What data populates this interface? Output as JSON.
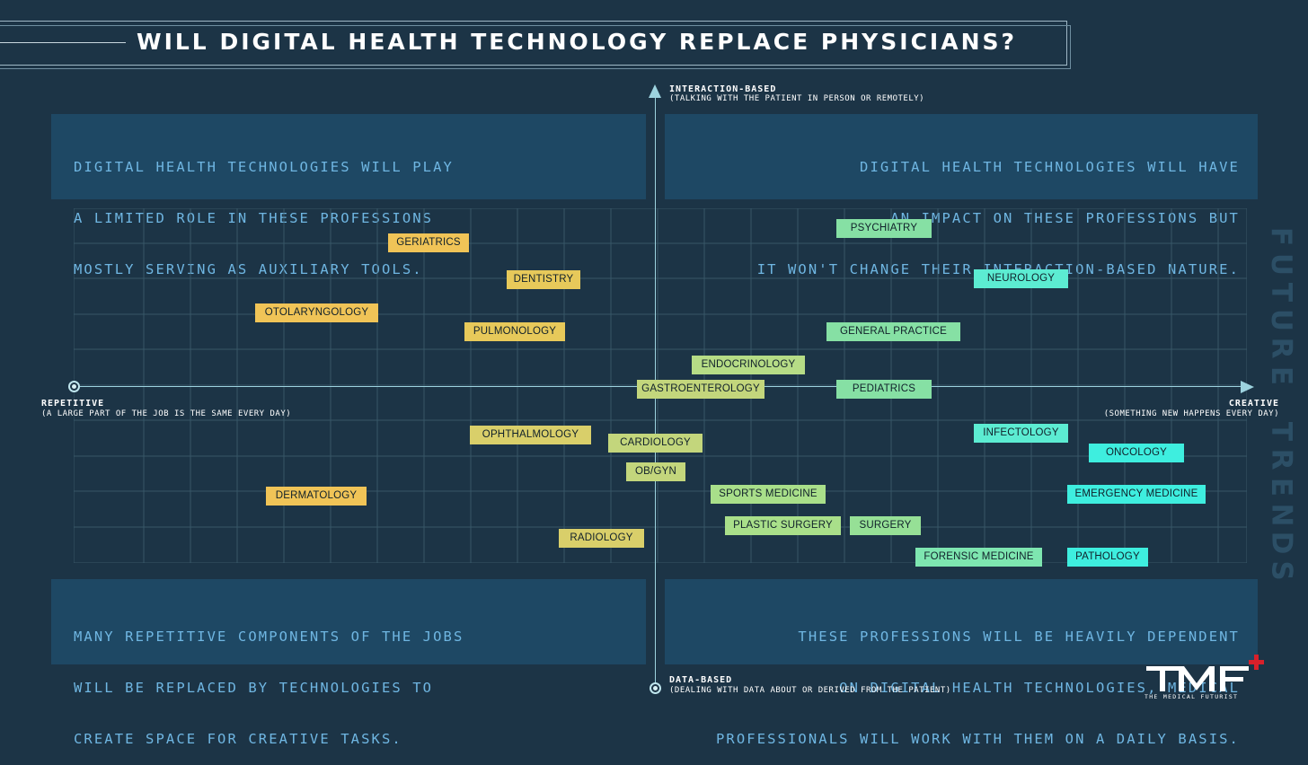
{
  "title": "WILL DIGITAL HEALTH TECHNOLOGY REPLACE PHYSICIANS?",
  "quadrants": {
    "top_left": [
      "DIGITAL HEALTH TECHNOLOGIES WILL PLAY",
      "A LIMITED ROLE IN THESE PROFESSIONS",
      "MOSTLY SERVING AS AUXILIARY TOOLS."
    ],
    "top_right": [
      "DIGITAL HEALTH TECHNOLOGIES WILL HAVE",
      "AN IMPACT ON THESE PROFESSIONS BUT",
      "IT WON'T CHANGE THEIR INTERACTION-BASED NATURE."
    ],
    "bottom_left": [
      "MANY REPETITIVE COMPONENTS OF THE JOBS",
      "WILL BE REPLACED BY TECHNOLOGIES TO",
      "CREATE SPACE FOR CREATIVE TASKS."
    ],
    "bottom_right": [
      "THESE PROFESSIONS WILL BE HEAVILY DEPENDENT",
      "ON DIGITAL HEALTH TECHNOLOGIES, MEDICAL",
      "PROFESSIONALS WILL WORK WITH THEM ON A DAILY BASIS."
    ]
  },
  "axes": {
    "top_label": "INTERACTION-BASED",
    "top_sub": "(TALKING WITH THE PATIENT IN PERSON OR REMOTELY)",
    "bottom_label": "DATA-BASED",
    "bottom_sub": "(DEALING WITH DATA ABOUT OR DERIVED FROM THE PATIENT)",
    "left_label": "REPETITIVE",
    "left_sub": "(A LARGE PART OF THE JOB IS THE SAME EVERY DAY)",
    "right_label": "CREATIVE",
    "right_sub": "(SOMETHING NEW HAPPENS EVERY DAY)"
  },
  "professions": [
    {
      "name": "GERIATRICS",
      "color": "#f0c457"
    },
    {
      "name": "DENTISTRY",
      "color": "#e7c95a"
    },
    {
      "name": "OTOLARYNGOLOGY",
      "color": "#f0c457"
    },
    {
      "name": "PULMONOLOGY",
      "color": "#e7c95a"
    },
    {
      "name": "PSYCHIATRY",
      "color": "#86e0a4"
    },
    {
      "name": "NEUROLOGY",
      "color": "#5cecd2"
    },
    {
      "name": "GENERAL PRACTICE",
      "color": "#86e0a4"
    },
    {
      "name": "ENDOCRINOLOGY",
      "color": "#b6dc86"
    },
    {
      "name": "GASTROENTEROLOGY",
      "color": "#c3d67c"
    },
    {
      "name": "PEDIATRICS",
      "color": "#86e0a4"
    },
    {
      "name": "OPHTHALMOLOGY",
      "color": "#d9cf6a"
    },
    {
      "name": "CARDIOLOGY",
      "color": "#c3d67c"
    },
    {
      "name": "OB/GYN",
      "color": "#c3d67c"
    },
    {
      "name": "INFECTOLOGY",
      "color": "#5cecd2"
    },
    {
      "name": "ONCOLOGY",
      "color": "#3eeedf"
    },
    {
      "name": "DERMATOLOGY",
      "color": "#f0c457"
    },
    {
      "name": "SPORTS MEDICINE",
      "color": "#a9df8a"
    },
    {
      "name": "EMERGENCY MEDICINE",
      "color": "#3eeedf"
    },
    {
      "name": "PLASTIC SURGERY",
      "color": "#a9df8a"
    },
    {
      "name": "SURGERY",
      "color": "#96e096"
    },
    {
      "name": "RADIOLOGY",
      "color": "#d9cf6a"
    },
    {
      "name": "FORENSIC MEDICINE",
      "color": "#7ee6b0"
    },
    {
      "name": "PATHOLOGY",
      "color": "#3eeedf"
    }
  ],
  "brand_vertical": "FUTURE TRENDS",
  "logo": {
    "mark": "TMF",
    "plus": "+",
    "subtitle": "THE MEDICAL FUTURIST"
  },
  "colors": {
    "background": "#1c3446",
    "panel": "#1f4a66",
    "panel_text": "#6fb6e2",
    "axis": "#9dd3df",
    "logo_plus": "#d8202a"
  }
}
